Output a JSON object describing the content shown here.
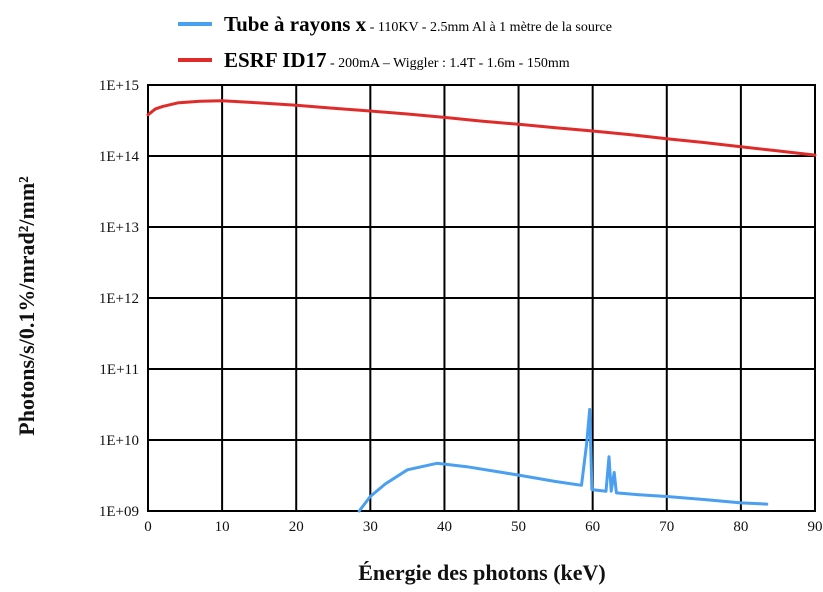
{
  "chart_data": {
    "type": "line",
    "title": "",
    "xlabel": "Énergie des photons (keV)",
    "ylabel": "Photons/s/0.1%/mrad²/mm²",
    "xlim": [
      0,
      90
    ],
    "ylim": [
      1000000000.0,
      1000000000000000.0
    ],
    "yscale": "log",
    "grid": true,
    "legend_position": "top",
    "x_ticks": [
      "0",
      "10",
      "20",
      "30",
      "40",
      "50",
      "60",
      "70",
      "80",
      "90"
    ],
    "y_ticks": [
      "1E+09",
      "1E+10",
      "1E+11",
      "1E+12",
      "1E+13",
      "1E+14",
      "1E+15"
    ],
    "series": [
      {
        "name": "Tube à rayons x",
        "detail": " - 110KV - 2.5mm Al à 1 mètre de la source",
        "color": "#4a9ff0",
        "points": [
          [
            28.5,
            1000000000.0
          ],
          [
            30,
            1600000000.0
          ],
          [
            32,
            2400000000.0
          ],
          [
            35,
            3800000000.0
          ],
          [
            39,
            4700000000.0
          ],
          [
            43,
            4200000000.0
          ],
          [
            50,
            3200000000.0
          ],
          [
            55,
            2600000000.0
          ],
          [
            58.5,
            2300000000.0
          ],
          [
            59.2,
            9000000000.0
          ],
          [
            59.6,
            27000000000.0
          ],
          [
            59.9,
            2000000000.0
          ],
          [
            61.8,
            1900000000.0
          ],
          [
            62.2,
            5800000000.0
          ],
          [
            62.5,
            1900000000.0
          ],
          [
            62.9,
            3500000000.0
          ],
          [
            63.2,
            1800000000.0
          ],
          [
            66,
            1700000000.0
          ],
          [
            70,
            1600000000.0
          ],
          [
            75,
            1450000000.0
          ],
          [
            80,
            1300000000.0
          ],
          [
            83.5,
            1250000000.0
          ]
        ]
      },
      {
        "name": "ESRF ID17",
        "detail": " - 200mA – Wiggler : 1.4T - 1.6m - 150mm",
        "color": "#e02b2b",
        "points": [
          [
            0,
            380000000000000.0
          ],
          [
            1,
            460000000000000.0
          ],
          [
            2,
            500000000000000.0
          ],
          [
            4,
            560000000000000.0
          ],
          [
            7,
            590000000000000.0
          ],
          [
            10,
            600000000000000.0
          ],
          [
            15,
            560000000000000.0
          ],
          [
            20,
            520000000000000.0
          ],
          [
            25,
            470000000000000.0
          ],
          [
            30,
            430000000000000.0
          ],
          [
            35,
            390000000000000.0
          ],
          [
            40,
            350000000000000.0
          ],
          [
            45,
            310000000000000.0
          ],
          [
            50,
            280000000000000.0
          ],
          [
            55,
            250000000000000.0
          ],
          [
            60,
            225000000000000.0
          ],
          [
            65,
            200000000000000.0
          ],
          [
            70,
            175000000000000.0
          ],
          [
            75,
            155000000000000.0
          ],
          [
            80,
            135000000000000.0
          ],
          [
            85,
            118000000000000.0
          ],
          [
            90,
            103000000000000.0
          ]
        ]
      }
    ]
  }
}
